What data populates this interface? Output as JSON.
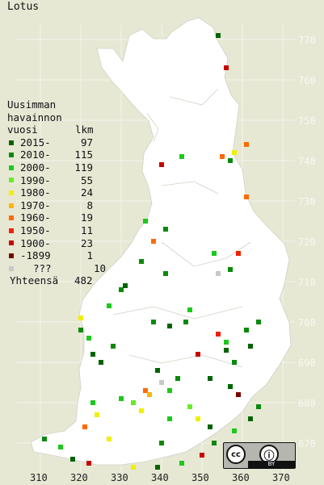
{
  "title": "Lotus",
  "legend": {
    "heading_lines": [
      "Uusimman",
      "havainnon",
      "vuosi"
    ],
    "count_header": "lkm",
    "entries": [
      {
        "label": "2015-",
        "count": "97",
        "color": "#006400"
      },
      {
        "label": "2010-",
        "count": "115",
        "color": "#0a8a0a"
      },
      {
        "label": "2000-",
        "count": "119",
        "color": "#1cc81c"
      },
      {
        "label": "1990-",
        "count": "55",
        "color": "#66ee22"
      },
      {
        "label": "1980-",
        "count": "24",
        "color": "#f0f000"
      },
      {
        "label": "1970-",
        "count": "8",
        "color": "#ffb400"
      },
      {
        "label": "1960-",
        "count": "19",
        "color": "#ff6a00"
      },
      {
        "label": "1950-",
        "count": "11",
        "color": "#ee2200"
      },
      {
        "label": "1900-",
        "count": "23",
        "color": "#c80000"
      },
      {
        "label": "-1899",
        "count": "1",
        "color": "#7a0000"
      },
      {
        "label": "???",
        "count": "10",
        "color": "#c8c8c8"
      }
    ],
    "total_label": "Yhteensä",
    "total_count": "482"
  },
  "axes": {
    "y_ticks": [
      "770",
      "760",
      "750",
      "740",
      "730",
      "720",
      "710",
      "700",
      "690",
      "680",
      "670"
    ],
    "x_ticks": [
      "310",
      "320",
      "330",
      "340",
      "350",
      "360",
      "370"
    ]
  },
  "license": {
    "cc": "cc",
    "by": "BY",
    "person_symbol": "ⓘ"
  },
  "chart_data": {
    "type": "grid-map",
    "title": "Lotus",
    "x_ticks": [
      310,
      320,
      330,
      340,
      350,
      360,
      370
    ],
    "y_ticks": [
      670,
      680,
      690,
      700,
      710,
      720,
      730,
      740,
      750,
      760,
      770
    ],
    "legend_title": "Uusimman havainnon vuosi",
    "categories": [
      "2015-",
      "2010-",
      "2000-",
      "1990-",
      "1980-",
      "1970-",
      "1960-",
      "1950-",
      "1900-",
      "-1899",
      "???"
    ],
    "counts": [
      97,
      115,
      119,
      55,
      24,
      8,
      19,
      11,
      23,
      1,
      10
    ],
    "total": 482,
    "points": [
      [
        354,
        771,
        0
      ],
      [
        356,
        763,
        8
      ],
      [
        361,
        744,
        6
      ],
      [
        358,
        742,
        4
      ],
      [
        357,
        740,
        1
      ],
      [
        355,
        741,
        6
      ],
      [
        340,
        739,
        8
      ],
      [
        345,
        741,
        2
      ],
      [
        336,
        725,
        2
      ],
      [
        341,
        723,
        1
      ],
      [
        338,
        720,
        6
      ],
      [
        359,
        717,
        7
      ],
      [
        354,
        712,
        10
      ],
      [
        353,
        717,
        2
      ],
      [
        357,
        713,
        1
      ],
      [
        335,
        715,
        1
      ],
      [
        361,
        731,
        6
      ],
      [
        341,
        712,
        1
      ],
      [
        330,
        708,
        1
      ],
      [
        331,
        709,
        0
      ],
      [
        327,
        704,
        2
      ],
      [
        320,
        701,
        4
      ],
      [
        320,
        698,
        1
      ],
      [
        322,
        696,
        2
      ],
      [
        323,
        692,
        0
      ],
      [
        325,
        690,
        0
      ],
      [
        328,
        694,
        1
      ],
      [
        346,
        700,
        1
      ],
      [
        342,
        699,
        0
      ],
      [
        347,
        703,
        2
      ],
      [
        338,
        700,
        1
      ],
      [
        364,
        700,
        1
      ],
      [
        361,
        698,
        1
      ],
      [
        362,
        694,
        0
      ],
      [
        356,
        695,
        2
      ],
      [
        354,
        697,
        7
      ],
      [
        356,
        693,
        0
      ],
      [
        358,
        690,
        1
      ],
      [
        349,
        692,
        8
      ],
      [
        352,
        686,
        0
      ],
      [
        357,
        684,
        0
      ],
      [
        359,
        682,
        9
      ],
      [
        339,
        688,
        0
      ],
      [
        340,
        685,
        10
      ],
      [
        342,
        683,
        2
      ],
      [
        344,
        686,
        1
      ],
      [
        336,
        683,
        6
      ],
      [
        337,
        682,
        5
      ],
      [
        330,
        681,
        2
      ],
      [
        333,
        680,
        3
      ],
      [
        335,
        678,
        4
      ],
      [
        323,
        680,
        2
      ],
      [
        324,
        677,
        4
      ],
      [
        321,
        674,
        6
      ],
      [
        327,
        671,
        4
      ],
      [
        311,
        671,
        1
      ],
      [
        315,
        669,
        2
      ],
      [
        318,
        666,
        0
      ],
      [
        322,
        665,
        8
      ],
      [
        333,
        664,
        4
      ],
      [
        339,
        664,
        0
      ],
      [
        345,
        665,
        2
      ],
      [
        350,
        667,
        8
      ],
      [
        358,
        673,
        2
      ],
      [
        362,
        676,
        0
      ],
      [
        364,
        679,
        1
      ],
      [
        347,
        679,
        3
      ],
      [
        349,
        676,
        4
      ],
      [
        352,
        674,
        0
      ],
      [
        353,
        670,
        1
      ],
      [
        340,
        670,
        1
      ],
      [
        342,
        676,
        2
      ]
    ]
  }
}
